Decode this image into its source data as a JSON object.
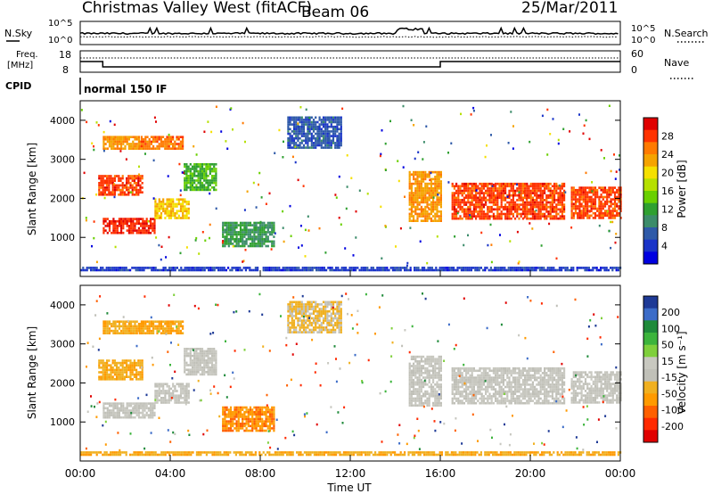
{
  "header": {
    "station": "Christmas Valley West (fitACF)",
    "beam": "Beam 06",
    "date": "25/Mar/2011"
  },
  "top_panels": {
    "nsky_label": "N.Sky",
    "nsearch_label": "N.Search",
    "freq_label_1": "Freq.",
    "freq_label_2": "[MHz]",
    "nave_label": "Nave",
    "cpid_label": "CPID",
    "cpid_value": "normal 150 IF",
    "noise_ticks": [
      "10^5",
      "10^0"
    ],
    "noise_ticks_right": [
      "10^5",
      "10^0"
    ],
    "freq_ticks": [
      "18",
      "8"
    ],
    "nave_ticks": [
      "60",
      "0"
    ]
  },
  "power_panel": {
    "ylabel": "Slant Range [km]",
    "yticks": [
      "4000",
      "3000",
      "2000",
      "1000"
    ],
    "cbar_label": "Power [dB]",
    "cbar_ticks": [
      "28",
      "24",
      "20",
      "16",
      "12",
      "8",
      "4"
    ],
    "cbar_colors": [
      "#e00000",
      "#ff3300",
      "#ff7a00",
      "#f5a300",
      "#f5e000",
      "#b6e000",
      "#6ad000",
      "#2fa030",
      "#3c8c6a",
      "#2f5aa8",
      "#1a34c8",
      "#0000e0"
    ]
  },
  "velocity_panel": {
    "ylabel": "Slant Range [km]",
    "yticks": [
      "4000",
      "3000",
      "2000",
      "1000"
    ],
    "cbar_label": "Velocity [m s⁻¹]",
    "cbar_ticks": [
      "200",
      "100",
      "50",
      "15",
      "-15",
      "-50",
      "-100",
      "-200"
    ],
    "cbar_colors": [
      "#1e3a96",
      "#3c6cc8",
      "#1f8a3a",
      "#3cb43c",
      "#7fd03c",
      "#c8c8c0",
      "#c0c0b8",
      "#f0b020",
      "#ff9a00",
      "#ff6000",
      "#ff2a00",
      "#e00000"
    ]
  },
  "xaxis": {
    "label": "Time UT",
    "ticks": [
      "00:00",
      "04:00",
      "08:00",
      "12:00",
      "16:00",
      "20:00",
      "00:00"
    ]
  },
  "chart_data": [
    {
      "type": "heatmap",
      "title": "Christmas Valley West (fitACF) Beam 06 25/Mar/2011",
      "quantity": "Power [dB]",
      "xlabel": "Time UT",
      "ylabel": "Slant Range [km]",
      "xlim_hours": [
        0,
        24
      ],
      "ylim_km": [
        0,
        4500
      ],
      "clim": [
        0,
        30
      ],
      "regions": [
        {
          "t0": 1.0,
          "t1": 3.3,
          "r0": 1100,
          "r1": 1500,
          "value": 27
        },
        {
          "t0": 3.3,
          "t1": 4.8,
          "r0": 1500,
          "r1": 2000,
          "value": 20
        },
        {
          "t0": 0.8,
          "t1": 2.8,
          "r0": 2100,
          "r1": 2600,
          "value": 26
        },
        {
          "t0": 1.0,
          "t1": 2.6,
          "r0": 3300,
          "r1": 3600,
          "value": 22
        },
        {
          "t0": 2.6,
          "t1": 4.6,
          "r0": 3300,
          "r1": 3600,
          "value": 24
        },
        {
          "t0": 4.6,
          "t1": 6.0,
          "r0": 2200,
          "r1": 2900,
          "value": 12
        },
        {
          "t0": 6.3,
          "t1": 8.6,
          "r0": 800,
          "r1": 1400,
          "value": 10
        },
        {
          "t0": 9.2,
          "t1": 11.6,
          "r0": 3300,
          "r1": 4100,
          "value": 6
        },
        {
          "t0": 14.6,
          "t1": 16.0,
          "r0": 1400,
          "r1": 2700,
          "value": 22
        },
        {
          "t0": 16.5,
          "t1": 21.5,
          "r0": 1500,
          "r1": 2400,
          "value": 26
        },
        {
          "t0": 21.8,
          "t1": 24.0,
          "r0": 1500,
          "r1": 2300,
          "value": 26
        },
        {
          "t0": 0.0,
          "t1": 24.0,
          "r0": 150,
          "r1": 250,
          "value": 4
        }
      ]
    },
    {
      "type": "heatmap",
      "quantity": "Velocity [m s^-1]",
      "xlabel": "Time UT",
      "ylabel": "Slant Range [km]",
      "xlim_hours": [
        0,
        24
      ],
      "ylim_km": [
        0,
        4500
      ],
      "clim": [
        -200,
        200
      ],
      "regions": [
        {
          "t0": 1.0,
          "t1": 3.3,
          "r0": 1100,
          "r1": 1500,
          "value": 0
        },
        {
          "t0": 3.3,
          "t1": 4.8,
          "r0": 1500,
          "r1": 2000,
          "value": 0
        },
        {
          "t0": 0.8,
          "t1": 2.8,
          "r0": 2100,
          "r1": 2600,
          "value": -60
        },
        {
          "t0": 1.0,
          "t1": 2.6,
          "r0": 3300,
          "r1": 3600,
          "value": -60
        },
        {
          "t0": 2.6,
          "t1": 4.6,
          "r0": 3300,
          "r1": 3600,
          "value": -70
        },
        {
          "t0": 4.6,
          "t1": 6.0,
          "r0": 2200,
          "r1": 2900,
          "value": 0
        },
        {
          "t0": 6.3,
          "t1": 8.6,
          "r0": 800,
          "r1": 1400,
          "value": -90
        },
        {
          "t0": 9.2,
          "t1": 11.6,
          "r0": 3300,
          "r1": 4100,
          "value": -40
        },
        {
          "t0": 14.6,
          "t1": 16.0,
          "r0": 1400,
          "r1": 2700,
          "value": 0
        },
        {
          "t0": 16.5,
          "t1": 21.5,
          "r0": 1500,
          "r1": 2400,
          "value": 0
        },
        {
          "t0": 21.8,
          "t1": 24.0,
          "r0": 1500,
          "r1": 2300,
          "value": 0
        },
        {
          "t0": 0.0,
          "t1": 24.0,
          "r0": 150,
          "r1": 250,
          "value": -60
        }
      ]
    }
  ]
}
